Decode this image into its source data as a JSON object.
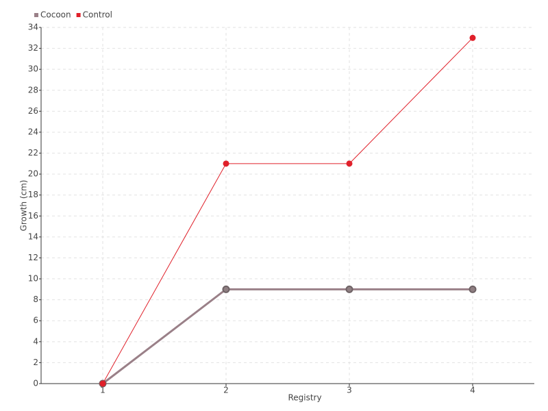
{
  "chart_data": {
    "type": "line",
    "x_label": "Registry",
    "y_label": "Growth (cm)",
    "categories": [
      "1",
      "2",
      "3",
      "4"
    ],
    "series": [
      {
        "name": "Cocoon",
        "color": "#9a8088",
        "values": [
          0,
          9,
          9,
          9
        ]
      },
      {
        "name": "Control",
        "color": "#e0202a",
        "values": [
          0,
          21,
          21,
          33
        ]
      }
    ],
    "ylim": [
      0,
      34
    ],
    "yticks": [
      0,
      2,
      4,
      6,
      8,
      10,
      12,
      14,
      16,
      18,
      20,
      22,
      24,
      26,
      28,
      30,
      32,
      34
    ],
    "grid": true,
    "legend": "top-left"
  }
}
